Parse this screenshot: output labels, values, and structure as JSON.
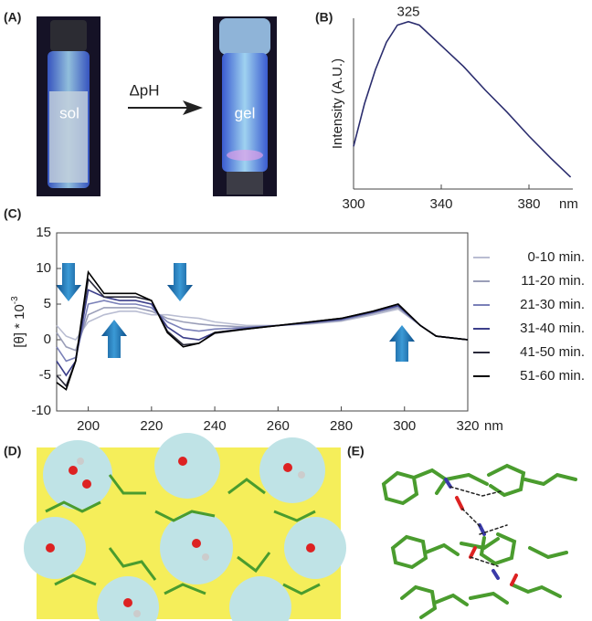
{
  "panels": {
    "a": {
      "label": "(A)",
      "sol": "sol",
      "arrow": "ΔpH",
      "gel": "gel"
    },
    "d": {
      "label": "(D)"
    },
    "e": {
      "label": "(E)"
    }
  },
  "chart_data": [
    {
      "type": "line",
      "label": "(B)",
      "ylabel": "Intensity (A.U.)",
      "x_unit": "nm",
      "annotations": [
        {
          "label": "325",
          "x": 325
        }
      ],
      "frame": false,
      "xlim": [
        300,
        400
      ],
      "xticks": [
        300,
        340,
        380
      ],
      "ylim": [
        0,
        100
      ],
      "x": [
        300,
        305,
        310,
        315,
        320,
        325,
        330,
        340,
        350,
        360,
        370,
        380,
        390,
        399
      ],
      "series": [
        {
          "color": "#2b2d6e",
          "values": [
            25,
            50,
            70,
            86,
            96,
            98,
            96,
            84,
            72,
            58,
            45,
            31,
            18,
            7
          ]
        }
      ]
    },
    {
      "type": "line",
      "label": "(C)",
      "ylabel": "[θ] * 10",
      "ylabel_exponent": "-3",
      "x_unit": "nm",
      "frame": true,
      "xlim": [
        190,
        320
      ],
      "xticks": [
        200,
        220,
        240,
        260,
        280,
        300,
        320
      ],
      "ylim": [
        -10,
        15
      ],
      "yticks": [
        -10,
        -5,
        0,
        5,
        10,
        15
      ],
      "x": [
        190,
        193,
        196,
        200,
        205,
        210,
        215,
        220,
        225,
        230,
        235,
        240,
        250,
        260,
        270,
        280,
        290,
        298,
        305,
        310,
        320
      ],
      "series": [
        {
          "name": "0-10 min.",
          "color": "#b9bdd2",
          "values": [
            2,
            0.5,
            0,
            2.5,
            3.5,
            4,
            4,
            3.5,
            3.5,
            3.2,
            3,
            2.5,
            2,
            2,
            2.2,
            2.6,
            3.5,
            4.3,
            2,
            0.5,
            0
          ]
        },
        {
          "name": "11-20 min.",
          "color": "#9a9eb8",
          "values": [
            1,
            -1,
            -1.5,
            3.5,
            4.5,
            4.5,
            4.5,
            4,
            3,
            2.5,
            2.2,
            2,
            1.8,
            2,
            2.3,
            2.7,
            3.7,
            4.5,
            2,
            0.5,
            0
          ]
        },
        {
          "name": "21-30 min.",
          "color": "#7a80b8",
          "values": [
            -1,
            -3,
            -2.5,
            5,
            5.5,
            5,
            5,
            4.5,
            2.5,
            1.5,
            1.2,
            1.5,
            1.7,
            2,
            2.4,
            2.8,
            3.8,
            4.7,
            2,
            0.5,
            0
          ]
        },
        {
          "name": "31-40 min.",
          "color": "#3c3f8a",
          "values": [
            -3,
            -5,
            -3,
            7,
            6,
            5.5,
            5.5,
            5,
            1.8,
            0.3,
            0,
            1,
            1.6,
            2,
            2.4,
            2.9,
            3.9,
            4.8,
            2,
            0.5,
            0
          ]
        },
        {
          "name": "41-50 min.",
          "color": "#2a2a3a",
          "values": [
            -5,
            -6.5,
            -3,
            8.5,
            6,
            6,
            6,
            5.5,
            1.2,
            -0.7,
            -0.5,
            0.9,
            1.5,
            2,
            2.5,
            3,
            4,
            5,
            2,
            0.5,
            0
          ]
        },
        {
          "name": "51-60 min.",
          "color": "#000000",
          "values": [
            -6,
            -7,
            -3,
            9.5,
            6.5,
            6.5,
            6.5,
            5.5,
            1,
            -1,
            -0.5,
            1,
            1.5,
            2,
            2.5,
            3,
            4,
            5,
            2,
            0.5,
            0
          ]
        }
      ]
    }
  ]
}
